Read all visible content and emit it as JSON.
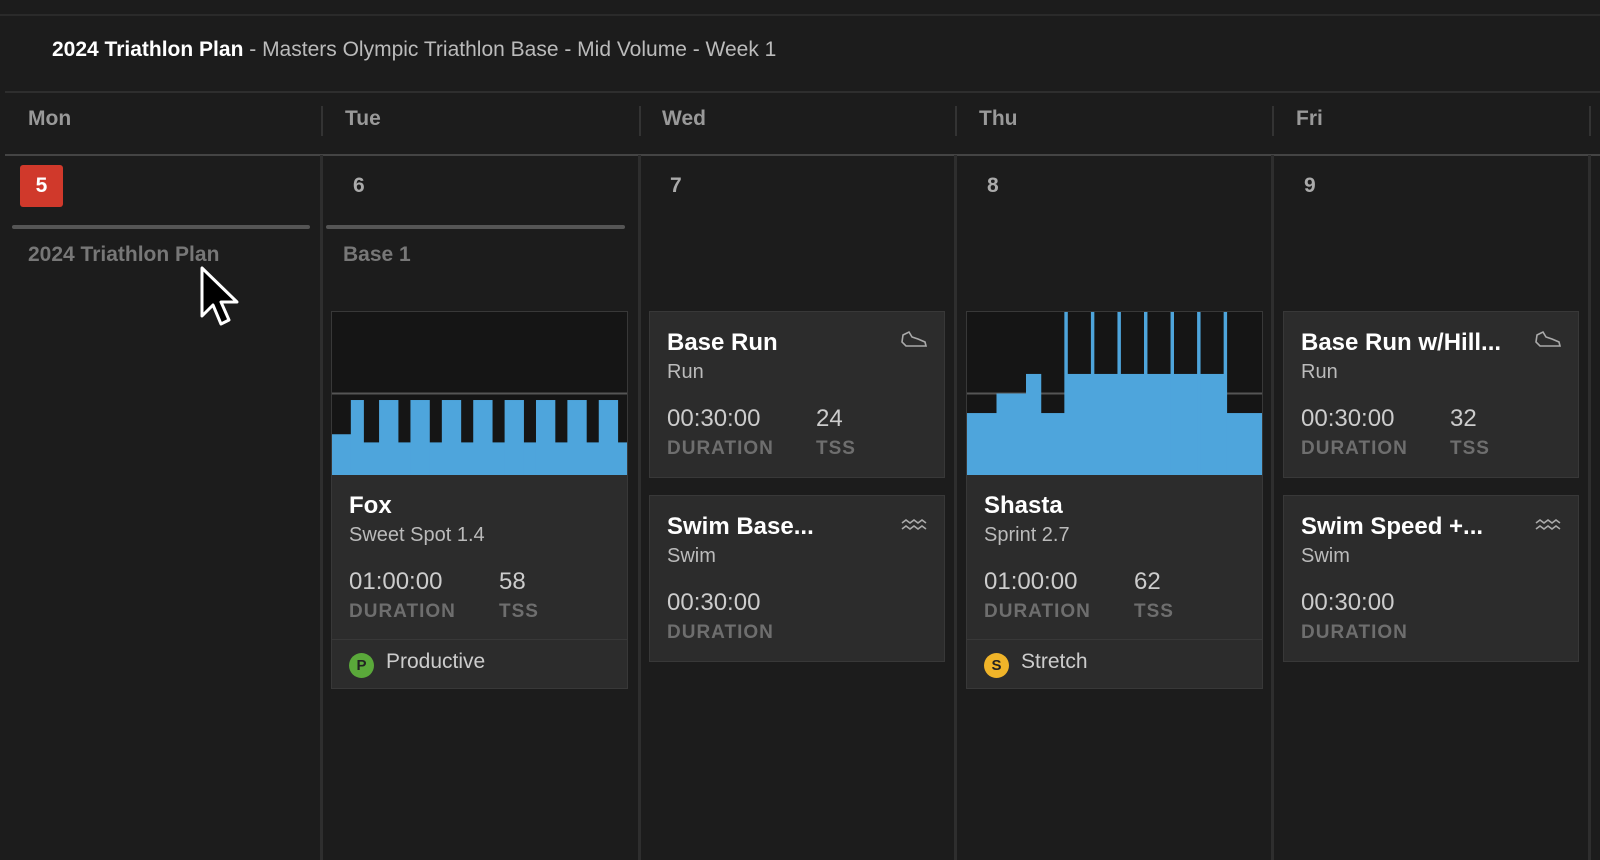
{
  "header": {
    "plan": "2024 Triathlon Plan",
    "subtitle": " - Masters Olympic Triathlon Base - Mid Volume - Week 1"
  },
  "days": [
    {
      "name": "Mon",
      "date": "5",
      "today": true,
      "phase": "2024 Triathlon Plan"
    },
    {
      "name": "Tue",
      "date": "6",
      "phase": "Base 1"
    },
    {
      "name": "Wed",
      "date": "7"
    },
    {
      "name": "Thu",
      "date": "8"
    },
    {
      "name": "Fri",
      "date": "9"
    }
  ],
  "colors": {
    "today": "#d0392b",
    "chart": "#4ea5dc",
    "productive": "#5aa83a",
    "stretch": "#f0b429"
  },
  "workouts": {
    "fox": {
      "title": "Fox",
      "subtitle": "Sweet Spot 1.4",
      "duration": "01:00:00",
      "tss": "58",
      "duration_label": "DURATION",
      "tss_label": "TSS",
      "zone_letter": "P",
      "zone": "Productive",
      "profile": [
        [
          6,
          0.25
        ],
        [
          4,
          0.46
        ],
        [
          5,
          0.2
        ],
        [
          6,
          0.46
        ],
        [
          4,
          0.2
        ],
        [
          6,
          0.46
        ],
        [
          4,
          0.2
        ],
        [
          6,
          0.46
        ],
        [
          4,
          0.2
        ],
        [
          6,
          0.46
        ],
        [
          4,
          0.2
        ],
        [
          6,
          0.46
        ],
        [
          4,
          0.2
        ],
        [
          6,
          0.46
        ],
        [
          4,
          0.2
        ],
        [
          6,
          0.46
        ],
        [
          4,
          0.2
        ],
        [
          6,
          0.46
        ],
        [
          3,
          0.2
        ]
      ]
    },
    "base_run": {
      "title": "Base Run",
      "subtitle": "Run",
      "duration": "00:30:00",
      "tss": "24",
      "duration_label": "DURATION",
      "tss_label": "TSS",
      "icon": "shoe-icon"
    },
    "swim_base": {
      "title": "Swim Base...",
      "subtitle": "Swim",
      "duration": "00:30:00",
      "duration_label": "DURATION",
      "icon": "waves-icon"
    },
    "shasta": {
      "title": "Shasta",
      "subtitle": "Sprint 2.7",
      "duration": "01:00:00",
      "tss": "62",
      "duration_label": "DURATION",
      "tss_label": "TSS",
      "zone_letter": "S",
      "zone": "Stretch",
      "profile": [
        [
          10,
          0.38
        ],
        [
          10,
          0.5
        ],
        [
          5,
          0.62
        ],
        [
          8,
          0.38
        ],
        [
          1,
          1.0
        ],
        [
          8,
          0.62
        ],
        [
          1,
          1.0
        ],
        [
          8,
          0.62
        ],
        [
          1,
          1.0
        ],
        [
          8,
          0.62
        ],
        [
          1,
          1.0
        ],
        [
          8,
          0.62
        ],
        [
          1,
          1.0
        ],
        [
          8,
          0.62
        ],
        [
          1,
          1.0
        ],
        [
          8,
          0.62
        ],
        [
          1,
          1.0
        ],
        [
          12,
          0.38
        ]
      ]
    },
    "base_run_hills": {
      "title": "Base Run w/Hill...",
      "subtitle": "Run",
      "duration": "00:30:00",
      "tss": "32",
      "duration_label": "DURATION",
      "tss_label": "TSS",
      "icon": "shoe-icon"
    },
    "swim_speed": {
      "title": "Swim Speed +...",
      "subtitle": "Swim",
      "duration": "00:30:00",
      "duration_label": "DURATION",
      "icon": "waves-icon"
    }
  }
}
